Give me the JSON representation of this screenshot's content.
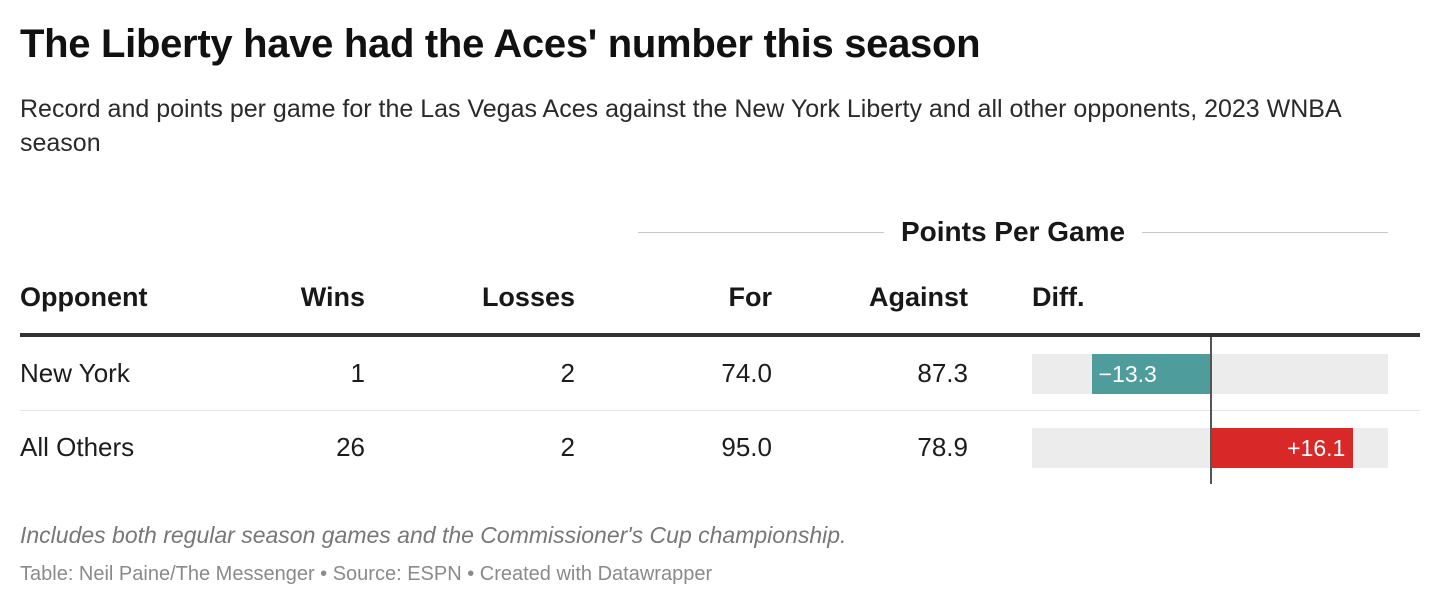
{
  "title": "The Liberty have had the Aces' number this season",
  "subtitle": "Record and points per game for the Las Vegas Aces against the New York Liberty and all other opponents, 2023 WNBA season",
  "group_header": "Points Per Game",
  "columns": {
    "opponent": "Opponent",
    "wins": "Wins",
    "losses": "Losses",
    "for": "For",
    "against": "Against",
    "diff": "Diff."
  },
  "rows": [
    {
      "opponent": "New York",
      "wins": "1",
      "losses": "2",
      "for": "74.0",
      "against": "87.3",
      "diff_label": "−13.3"
    },
    {
      "opponent": "All Others",
      "wins": "26",
      "losses": "2",
      "for": "95.0",
      "against": "78.9",
      "diff_label": "+16.1"
    }
  ],
  "footer": {
    "note": "Includes both regular season games and the Commissioner's Cup championship.",
    "credit": "Table: Neil Paine/The Messenger • Source: ESPN • Created with Datawrapper"
  },
  "colors": {
    "negative": "#4e9c9c",
    "positive": "#d92828",
    "bar_background": "#ececec"
  },
  "chart_data": {
    "type": "table",
    "columns": [
      "Opponent",
      "Wins",
      "Losses",
      "For",
      "Against",
      "Diff."
    ],
    "rows": [
      [
        "New York",
        1,
        2,
        74.0,
        87.3,
        -13.3
      ],
      [
        "All Others",
        26,
        2,
        95.0,
        78.9,
        16.1
      ]
    ],
    "diff_range": [
      -20,
      20
    ]
  }
}
